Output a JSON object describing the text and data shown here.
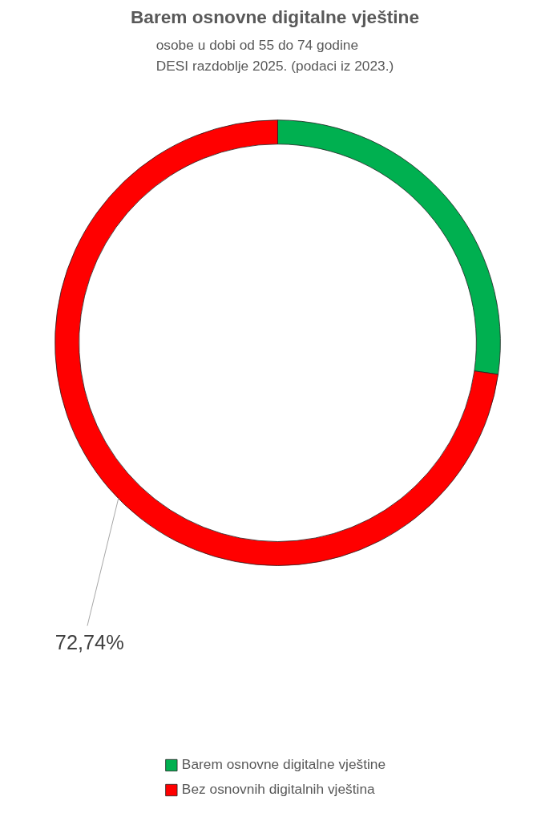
{
  "chart_data": {
    "type": "donut",
    "title": "Barem osnovne digitalne vještine",
    "subtitle": "osobe u dobi od 55 do 74 godine\nDESI razdoblje 2025. (podaci iz 2023.)",
    "categories": [
      "Barem osnovne digitalne vještine",
      "Bez osnovnih digitalnih vještina"
    ],
    "values": [
      27.26,
      72.74
    ],
    "colors": [
      "#00b050",
      "#ff0000"
    ],
    "value_labels": [
      null,
      "72,74%"
    ],
    "legend": "bottom"
  }
}
